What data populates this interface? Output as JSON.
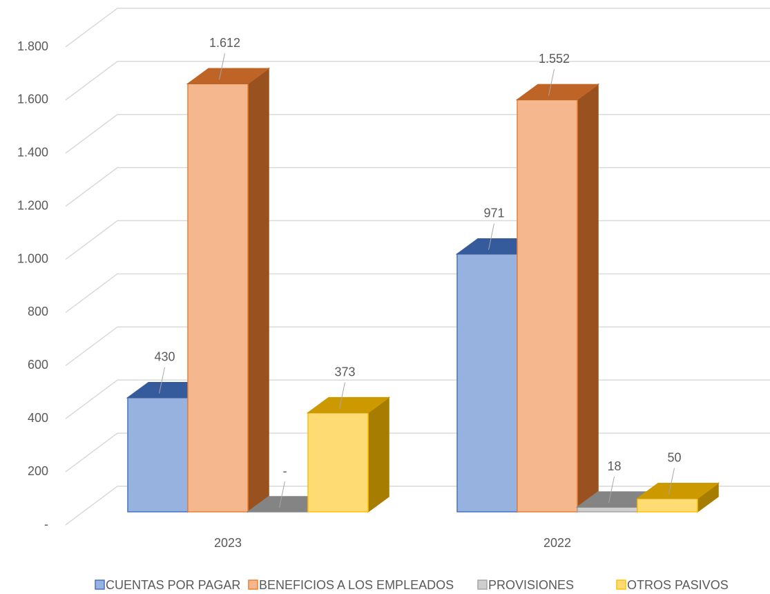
{
  "chart_data": {
    "type": "bar3d",
    "categories": [
      "2023",
      "2022"
    ],
    "series": [
      {
        "name": "CUENTAS POR PAGAR",
        "color": "#4472c4",
        "values": [
          430,
          971
        ],
        "value_labels": [
          "430",
          "971"
        ]
      },
      {
        "name": "BENEFICIOS A LOS EMPLEADOS",
        "color": "#ed7d31",
        "values": [
          1612,
          1552
        ],
        "value_labels": [
          "1.612",
          "1.552"
        ]
      },
      {
        "name": "PROVISIONES",
        "color": "#a5a5a5",
        "values": [
          0,
          18
        ],
        "value_labels": [
          "-",
          "18"
        ]
      },
      {
        "name": "OTROS PASIVOS",
        "color": "#ffc000",
        "values": [
          373,
          50
        ],
        "value_labels": [
          "373",
          "50"
        ]
      }
    ],
    "ylim": [
      0,
      1800
    ],
    "yticks": [
      {
        "value": 0,
        "label": "-"
      },
      200,
      400,
      600,
      800,
      {
        "value": 1000,
        "label": "1.000"
      },
      {
        "value": 1200,
        "label": "1.200"
      },
      {
        "value": 1400,
        "label": "1.400"
      },
      {
        "value": 1600,
        "label": "1.600"
      },
      {
        "value": 1800,
        "label": "1.800"
      }
    ],
    "grid": true,
    "legend": "bottom"
  }
}
